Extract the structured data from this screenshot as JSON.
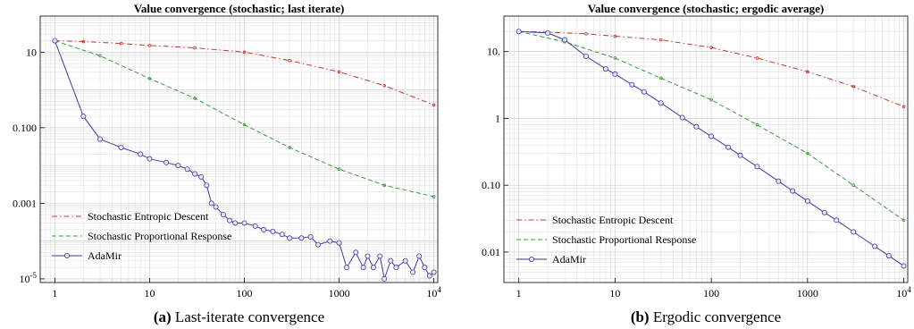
{
  "chart_data": [
    {
      "type": "line",
      "title": "Value convergence (stochastic; last iterate)",
      "xscale": "log",
      "yscale": "log",
      "xlim": [
        0.7,
        11000
      ],
      "ylim": [
        8e-06,
        90
      ],
      "xticks": [
        1,
        10,
        100,
        1000,
        10000
      ],
      "xtick_labels": [
        "1",
        "10",
        "100",
        "1000",
        "10^4"
      ],
      "yticks": [
        1e-05,
        0.001,
        0.1,
        10
      ],
      "ytick_labels": [
        "10^-5",
        "0.001",
        "0.100",
        "10"
      ],
      "grid": true,
      "legend_position": "bottom-left",
      "series": [
        {
          "name": "Stochastic Entropic Descent",
          "color": "#c0392b",
          "style": "dash-dot",
          "x": [
            1,
            2,
            5,
            10,
            30,
            100,
            300,
            1000,
            3000,
            10000
          ],
          "y": [
            20,
            19,
            17,
            15,
            13,
            10,
            6,
            3,
            1.3,
            0.4
          ]
        },
        {
          "name": "Stochastic Proportional Response",
          "color": "#3a9a3a",
          "style": "dashed",
          "x": [
            1,
            3,
            10,
            30,
            100,
            300,
            1000,
            3000,
            10000
          ],
          "y": [
            20,
            8,
            2,
            0.6,
            0.12,
            0.03,
            0.008,
            0.003,
            0.0015
          ]
        },
        {
          "name": "AdaMir",
          "color": "#3a3aa8",
          "style": "solid-markers",
          "x": [
            1,
            2,
            3,
            5,
            8,
            10,
            15,
            20,
            25,
            30,
            35,
            40,
            45,
            50,
            60,
            70,
            80,
            100,
            130,
            160,
            200,
            250,
            300,
            400,
            500,
            600,
            800,
            1000,
            1200,
            1500,
            1800,
            2000,
            2300,
            2700,
            3000,
            3500,
            4000,
            5000,
            6000,
            7000,
            8000,
            9000,
            10000
          ],
          "y": [
            20,
            0.2,
            0.05,
            0.03,
            0.02,
            0.015,
            0.012,
            0.01,
            0.008,
            0.006,
            0.005,
            0.003,
            0.001,
            0.0008,
            0.0005,
            0.00035,
            0.0003,
            0.0003,
            0.00025,
            0.0002,
            0.00018,
            0.00015,
            0.00012,
            0.00012,
            0.00013,
            8e-05,
            0.0001,
            9e-05,
            2e-05,
            5e-05,
            2e-05,
            4e-05,
            2e-05,
            4e-05,
            1e-05,
            3e-05,
            2e-05,
            3e-05,
            1.5e-05,
            4e-05,
            2e-05,
            1.2e-05,
            1.5e-05
          ]
        }
      ]
    },
    {
      "type": "line",
      "title": "Value convergence (stochastic; ergodic average)",
      "xscale": "log",
      "yscale": "log",
      "xlim": [
        0.7,
        11000
      ],
      "ylim": [
        0.0035,
        34
      ],
      "xticks": [
        1,
        10,
        100,
        1000,
        10000
      ],
      "xtick_labels": [
        "1",
        "10",
        "100",
        "1000",
        "10^4"
      ],
      "yticks": [
        0.01,
        0.1,
        1,
        10
      ],
      "ytick_labels": [
        "0.01",
        "0.10",
        "1",
        "10."
      ],
      "grid": true,
      "legend_position": "bottom-left",
      "series": [
        {
          "name": "Stochastic Entropic Descent",
          "color": "#c0392b",
          "style": "dash-dot",
          "x": [
            1,
            2,
            5,
            10,
            30,
            100,
            300,
            1000,
            3000,
            10000
          ],
          "y": [
            20,
            19.5,
            18.5,
            17,
            15,
            11.5,
            8,
            5,
            3,
            1.5
          ]
        },
        {
          "name": "Stochastic Proportional Response",
          "color": "#3a9a3a",
          "style": "dashed",
          "x": [
            1,
            3,
            10,
            30,
            100,
            300,
            1000,
            3000,
            10000
          ],
          "y": [
            20,
            14,
            8,
            4,
            1.9,
            0.8,
            0.3,
            0.1,
            0.03
          ]
        },
        {
          "name": "AdaMir",
          "color": "#3a3aa8",
          "style": "solid-markers",
          "x": [
            1,
            2,
            3,
            5,
            8,
            10,
            15,
            20,
            30,
            50,
            70,
            100,
            150,
            200,
            300,
            500,
            700,
            1000,
            1500,
            2000,
            3000,
            5000,
            7000,
            10000
          ],
          "y": [
            20,
            19,
            15,
            8.5,
            5.5,
            4.6,
            3.2,
            2.5,
            1.7,
            1.03,
            0.75,
            0.54,
            0.37,
            0.28,
            0.19,
            0.115,
            0.082,
            0.058,
            0.039,
            0.03,
            0.02,
            0.0122,
            0.0088,
            0.0062
          ]
        }
      ]
    }
  ],
  "captions": [
    {
      "tag": "(a)",
      "text": "Last-iterate convergence"
    },
    {
      "tag": "(b)",
      "text": "Ergodic convergence"
    }
  ]
}
